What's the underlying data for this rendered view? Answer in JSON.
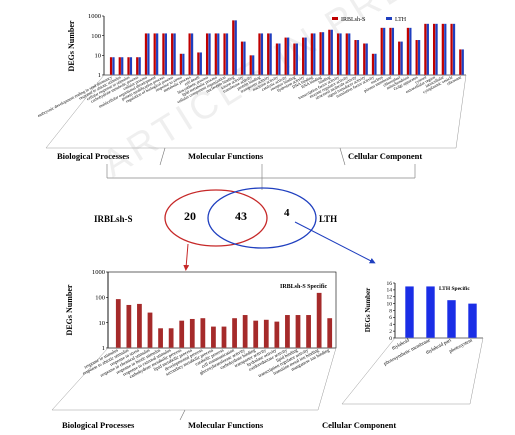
{
  "watermark": "ARTICLE IN PRESS",
  "venn": {
    "left_label": "IRBLsh-S",
    "right_label": "LTH",
    "left_only": "20",
    "shared": "43",
    "right_only": "4"
  },
  "section_labels": {
    "biological": "Biological Processes",
    "molecular": "Molecular Functions",
    "cellular": "Cellular Component"
  },
  "chart_data": [
    {
      "type": "bar",
      "ylabel": "DEGs Number",
      "yscale": "log",
      "ylim": [
        1,
        1000
      ],
      "yticks": [
        "1",
        "10",
        "100",
        "1000"
      ],
      "legend_position": "top-right",
      "series": [
        {
          "name": "IRBLsh-S",
          "color": "#c00000",
          "values": [
            8,
            8,
            8,
            8,
            130,
            130,
            130,
            130,
            12,
            130,
            14,
            130,
            130,
            130,
            600,
            50,
            10,
            130,
            130,
            40,
            80,
            40,
            80,
            130,
            150,
            200,
            130,
            130,
            60,
            40,
            12,
            250,
            250,
            50,
            250,
            60,
            400,
            400,
            400,
            400,
            20
          ]
        },
        {
          "name": "LTH",
          "color": "#1f3fbf",
          "values": [
            8,
            8,
            8,
            8,
            130,
            130,
            130,
            130,
            12,
            130,
            14,
            130,
            130,
            130,
            600,
            50,
            10,
            130,
            130,
            40,
            80,
            40,
            80,
            130,
            150,
            200,
            130,
            130,
            60,
            40,
            12,
            250,
            250,
            50,
            250,
            60,
            400,
            400,
            400,
            400,
            20
          ]
        }
      ],
      "categories": [
        "embryonic development ending in seed dormancy",
        "response to abiotic stimulus",
        "cellular response to stimulus",
        "carbohydrate metabolic process",
        "cellular process",
        "multicellular organismal development",
        "protein modification process",
        "regulation of biological process",
        "response to stress",
        "metabolic process",
        "cell death",
        "biosynthetic process",
        "lipid metabolic process",
        "cellular component organization",
        "nucleotide binding",
        "kinase activity",
        "transferase activity",
        "protein binding",
        "transporter activity",
        "nuclease activity",
        "catalytic activity",
        "receptor binding",
        "hydrolase activity",
        "DNA binding",
        "RNA binding",
        "binding",
        "transcription factor activity",
        "enzyme regulator activity",
        "structural molecule activity",
        "signal transducer activity",
        "translation factor activity",
        "nucleus",
        "plasma membrane",
        "chloroplast",
        "mitochondrion",
        "Golgi apparatus",
        "cytosol",
        "extracellular region",
        "intracellular",
        "cytoplasmic vesicle",
        "ribosome"
      ]
    },
    {
      "type": "bar",
      "title": "IRBLsh-S Specific",
      "ylabel": "DEGs Number",
      "yscale": "log",
      "ylim": [
        1,
        1000
      ],
      "yticks": [
        "1",
        "10",
        "100",
        "1000"
      ],
      "series": [
        {
          "name": "IRBLsh-S Specific",
          "color": "#a52a2a",
          "values": [
            85,
            50,
            55,
            25,
            6,
            6,
            12,
            14,
            15,
            7,
            7,
            15,
            20,
            12,
            13,
            11,
            20,
            20,
            20,
            150,
            15
          ]
        }
      ],
      "categories": [
        "response to stimulus",
        "response to abiotic stimulus",
        "response to stress",
        "response to chemical stimulus",
        "response to biotic stimulus",
        "response to external stimulus",
        "carbohydrate metabolic process",
        "lipid metabolic process",
        "developmental process",
        "secondary metabolic process",
        "catabolic process",
        "cell communication",
        "glucosyltransferase activity",
        "carbohydrate binding",
        "transporter activity",
        "hydrolase activity",
        "oxidoreductase activity",
        "lipid binding",
        "transcription regulator activity",
        "transition metal ion binding",
        "manganese ion binding"
      ]
    },
    {
      "type": "bar",
      "title": "LTH Specific",
      "ylabel": "DEGs Number",
      "ylim": [
        0,
        16
      ],
      "yticks": [
        "0",
        "2",
        "4",
        "6",
        "8",
        "10",
        "12",
        "14",
        "16"
      ],
      "series": [
        {
          "name": "LTH Specific",
          "color": "#1a2ee6",
          "values": [
            15,
            15,
            11,
            10
          ]
        }
      ],
      "categories": [
        "thylakoid",
        "photosynthetic membrane",
        "thylakoid part",
        "photosystem"
      ]
    }
  ]
}
